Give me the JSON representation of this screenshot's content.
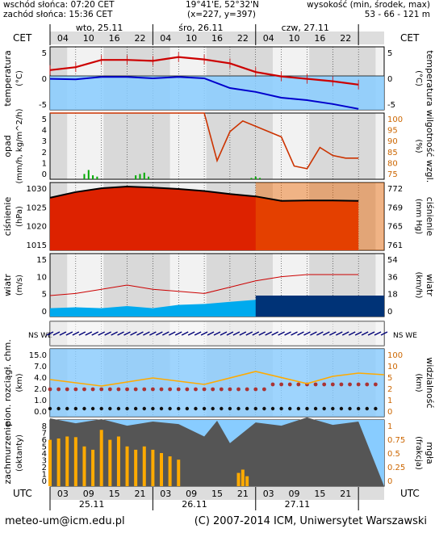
{
  "header": {
    "sunrise": "wschód słońca: 07:20 CET",
    "sunset": "zachód słońca: 15:36 CET",
    "coords": "19°41'E, 52°32'N",
    "grid": "(x=227, y=397)",
    "elevation_label": "wysokość (min, środek, max)",
    "elevation_values": "53 - 66 - 121 m"
  },
  "time_axis": {
    "tz_top": "CET",
    "tz_bottom": "UTC",
    "top_hours": [
      "04",
      "10",
      "16",
      "22",
      "04",
      "10",
      "16",
      "22",
      "04",
      "10",
      "16",
      "22"
    ],
    "bottom_hours": [
      "03",
      "09",
      "15",
      "21",
      "03",
      "09",
      "15",
      "21",
      "03",
      "09",
      "15",
      "21"
    ],
    "top_days": [
      "wto, 25.11",
      "śro, 26.11",
      "czw, 27.11"
    ],
    "bottom_days": [
      "25.11",
      "26.11",
      "27.11"
    ]
  },
  "panels": {
    "temperature": {
      "left_label": "temperatura",
      "left_unit": "(°C)",
      "right_label": "temperatura",
      "right_unit": "(°C)",
      "ticks": [
        "5",
        "0",
        "-5"
      ]
    },
    "precip": {
      "left_label": "opad",
      "left_unit": "(mm/h, kg/m^2/h)",
      "right_label": "wilgotność wzgl.",
      "right_unit": "(%)",
      "left_ticks": [
        "5",
        "4",
        "3",
        "2",
        "1",
        "0"
      ],
      "right_ticks": [
        "100",
        "95",
        "90",
        "85",
        "80",
        "75"
      ]
    },
    "pressure": {
      "left_label": "ciśnienie",
      "left_unit": "(hPa)",
      "right_label": "ciśnienie",
      "right_unit": "(mm Hg)",
      "left_ticks": [
        "1030",
        "1025",
        "1020",
        "1015"
      ],
      "right_ticks": [
        "772",
        "769",
        "765",
        "761"
      ]
    },
    "wind": {
      "left_label": "wiatr",
      "left_unit": "(m/s)",
      "right_label": "wiatr",
      "right_unit": "(km/h)",
      "left_ticks": [
        "15",
        "10",
        "5",
        "0"
      ],
      "right_ticks": [
        "54",
        "36",
        "18",
        "0"
      ]
    },
    "winddir": {
      "compass": "NS WE"
    },
    "cloudbase": {
      "left_label": "pion. rozciągł. chm.",
      "left_unit": "(km)",
      "right_label": "widzialność",
      "right_unit": "(km)",
      "left_ticks": [
        "15.0",
        "7.0",
        "4.0",
        "2.0",
        "1.0",
        "0.0"
      ],
      "right_ticks": [
        "100",
        "10",
        "5",
        "2",
        "1",
        "0"
      ]
    },
    "clouds": {
      "left_label": "zachmurzenie",
      "left_unit": "(oktanty)",
      "right_label": "mgła",
      "right_unit": "(frakcja)",
      "left_ticks": [
        "8",
        "7",
        "6",
        "5",
        "4",
        "3",
        "2",
        "1",
        "0"
      ],
      "right_ticks": [
        "1",
        "0.75",
        "0.5",
        "0.25",
        "0"
      ]
    }
  },
  "footer": {
    "email": "meteo-um@icm.edu.pl",
    "copyright": "(C) 2007-2014 ICM, Uniwersytet Warszawski"
  },
  "colors": {
    "temp_line": "#cc0000",
    "dew_line": "#0000cc",
    "rh_line": "#cc3300",
    "precip_bar": "#00aa00",
    "pressure_fill": "#dd2200",
    "wind_fill": "#00aaee",
    "cloud_bar": "#ffaa00",
    "cloud_fill": "#555555",
    "sky_blue": "#88ccff"
  },
  "chart_data": [
    {
      "type": "line",
      "title": "temperatura",
      "x_hours": [
        0,
        6,
        12,
        18,
        24,
        30,
        36,
        42,
        48,
        54,
        60,
        66,
        72
      ],
      "series": [
        {
          "values": [
            1.2,
            1.8,
            3.3,
            3.3,
            3.1,
            3.9,
            3.4,
            2.6,
            0.8,
            -0.1,
            -0.6,
            -1.1,
            -1.8
          ]
        },
        {
          "values": [
            -0.6,
            -0.7,
            -0.2,
            -0.2,
            -0.5,
            -0.2,
            -0.5,
            -2.5,
            -3.3,
            -4.5,
            -5.0,
            -5.8,
            -6.8
          ]
        }
      ],
      "ylim": [
        -7,
        6
      ]
    },
    {
      "type": "line",
      "title": "wilgotność wzgl.",
      "x_hours": [
        0,
        6,
        12,
        18,
        24,
        30,
        36,
        39,
        42,
        45,
        48,
        54,
        57,
        60,
        63,
        66,
        69,
        72
      ],
      "series": [
        {
          "values": [
            100,
            100,
            100,
            100,
            100,
            100,
            100,
            82,
            93,
            97,
            95,
            91,
            80,
            79,
            87,
            84,
            83,
            83
          ]
        }
      ],
      "ylim": [
        75,
        100
      ]
    },
    {
      "type": "bar",
      "title": "opad",
      "x_hours": [
        8,
        9,
        10,
        11,
        20,
        21,
        22,
        23,
        47,
        48,
        49
      ],
      "values": [
        0.4,
        0.7,
        0.3,
        0.2,
        0.3,
        0.4,
        0.5,
        0.2,
        0.1,
        0.2,
        0.1
      ],
      "ylim": [
        0,
        5
      ]
    },
    {
      "type": "area",
      "title": "ciśnienie",
      "x_hours": [
        0,
        6,
        12,
        18,
        24,
        30,
        36,
        42,
        48,
        54,
        60,
        66,
        72
      ],
      "values": [
        1025.5,
        1027.2,
        1028.3,
        1028.8,
        1028.5,
        1028.1,
        1027.5,
        1026.6,
        1025.9,
        1024.6,
        1024.7,
        1024.7,
        1024.6
      ],
      "ylim": [
        1010,
        1030
      ]
    },
    {
      "type": "area",
      "title": "wiatr",
      "x_hours": [
        0,
        6,
        12,
        18,
        24,
        30,
        36,
        42,
        48,
        54,
        60,
        66,
        72
      ],
      "series": [
        {
          "values": [
            2.0,
            2.2,
            2.0,
            2.5,
            2.0,
            2.8,
            3.0,
            3.5,
            4.0,
            4.5,
            5.0,
            5.0,
            5.0
          ]
        },
        {
          "values": [
            5.0,
            5.5,
            6.5,
            7.5,
            6.5,
            6.0,
            5.5,
            7.0,
            8.5,
            9.5,
            10.0,
            10.0,
            10.0
          ]
        }
      ],
      "ylim": [
        0,
        15
      ]
    },
    {
      "type": "area",
      "title": "zachmurzenie",
      "x_hours": [
        0,
        6,
        12,
        18,
        24,
        30,
        36,
        39,
        42,
        48,
        54,
        60,
        66,
        72
      ],
      "values": [
        8.2,
        7.6,
        8.1,
        7.3,
        7.8,
        7.5,
        6.0,
        7.9,
        5.2,
        7.7,
        7.3,
        8.3,
        7.4,
        7.8
      ],
      "ylim": [
        0,
        8
      ]
    },
    {
      "type": "bar",
      "title": "mgła",
      "x_hours": [
        0,
        2,
        4,
        6,
        8,
        10,
        12,
        14,
        16,
        18,
        20,
        22,
        24,
        26,
        28,
        30,
        44,
        45,
        46
      ],
      "values": [
        0.7,
        0.72,
        0.75,
        0.74,
        0.6,
        0.55,
        0.85,
        0.7,
        0.75,
        0.6,
        0.55,
        0.6,
        0.55,
        0.5,
        0.45,
        0.4,
        0.2,
        0.25,
        0.15
      ],
      "ylim": [
        0,
        1
      ]
    }
  ]
}
